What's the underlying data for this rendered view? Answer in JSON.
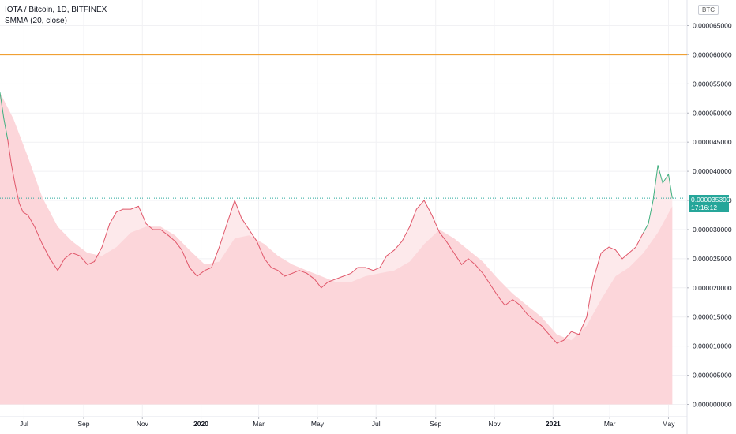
{
  "legend": {
    "title": "IOTA / Bitcoin, 1D, BITFINEX",
    "indicator": "SMMA (20, close)"
  },
  "currency_badge": "BTC",
  "last_price_tag": {
    "price": "0.000035390",
    "countdown": "17:16:12"
  },
  "colors": {
    "price_line": "#e0576a",
    "price_line_up": "#3fb07f",
    "area_under": "#fcd6da",
    "area_between": "#fde9eb",
    "horizontal_line": "#f0a033",
    "grid": "#f1f1f4",
    "axis_text": "#131722",
    "tag_bg": "#26a69a"
  },
  "chart_data": {
    "type": "line",
    "title": "IOTA / Bitcoin, 1D, BITFINEX",
    "xlabel": "",
    "ylabel": "",
    "ylim": [
      0,
      6.65e-05
    ],
    "y_ticks": [
      "0.000000000",
      "0.000005000",
      "0.000010000",
      "0.000015000",
      "0.000020000",
      "0.000025000",
      "0.000030000",
      "0.000035000",
      "0.000040000",
      "0.000045000",
      "0.000050000",
      "0.000055000",
      "0.000060000",
      "0.000065000"
    ],
    "x_ticks": [
      "Jul",
      "Sep",
      "Nov",
      "2020",
      "Mar",
      "May",
      "Jul",
      "Sep",
      "Nov",
      "2021",
      "Mar",
      "May"
    ],
    "x_range": [
      "2019-06-06",
      "2021-05-08"
    ],
    "horizontal_line": 6e-05,
    "grid": true,
    "legend": "top-left",
    "series": [
      {
        "name": "IOTA / Bitcoin",
        "x": [
          "2019-06-06",
          "2019-06-10",
          "2019-06-14",
          "2019-06-18",
          "2019-06-22",
          "2019-06-26",
          "2019-06-30",
          "2019-07-05",
          "2019-07-12",
          "2019-07-20",
          "2019-07-28",
          "2019-08-05",
          "2019-08-12",
          "2019-08-20",
          "2019-08-28",
          "2019-09-05",
          "2019-09-12",
          "2019-09-20",
          "2019-09-28",
          "2019-10-05",
          "2019-10-12",
          "2019-10-20",
          "2019-10-28",
          "2019-11-05",
          "2019-11-12",
          "2019-11-20",
          "2019-11-28",
          "2019-12-05",
          "2019-12-12",
          "2019-12-20",
          "2019-12-28",
          "2020-01-05",
          "2020-01-12",
          "2020-01-20",
          "2020-01-28",
          "2020-02-05",
          "2020-02-12",
          "2020-02-20",
          "2020-02-28",
          "2020-03-07",
          "2020-03-14",
          "2020-03-21",
          "2020-03-28",
          "2020-04-05",
          "2020-04-12",
          "2020-04-20",
          "2020-04-28",
          "2020-05-05",
          "2020-05-12",
          "2020-05-20",
          "2020-05-28",
          "2020-06-05",
          "2020-06-12",
          "2020-06-20",
          "2020-06-28",
          "2020-07-05",
          "2020-07-12",
          "2020-07-20",
          "2020-07-28",
          "2020-08-05",
          "2020-08-12",
          "2020-08-20",
          "2020-08-28",
          "2020-09-05",
          "2020-09-12",
          "2020-09-20",
          "2020-09-28",
          "2020-10-05",
          "2020-10-12",
          "2020-10-20",
          "2020-10-28",
          "2020-11-05",
          "2020-11-12",
          "2020-11-20",
          "2020-11-28",
          "2020-12-05",
          "2020-12-12",
          "2020-12-20",
          "2020-12-28",
          "2021-01-05",
          "2021-01-12",
          "2021-01-20",
          "2021-01-28",
          "2021-02-05",
          "2021-02-12",
          "2021-02-20",
          "2021-02-28",
          "2021-03-07",
          "2021-03-14",
          "2021-03-21",
          "2021-03-28",
          "2021-04-05",
          "2021-04-10",
          "2021-04-15",
          "2021-04-20",
          "2021-04-25",
          "2021-05-01",
          "2021-05-05"
        ],
        "values": [
          5.35e-05,
          4.9e-05,
          4.55e-05,
          4.1e-05,
          3.75e-05,
          3.45e-05,
          3.3e-05,
          3.25e-05,
          3.05e-05,
          2.75e-05,
          2.5e-05,
          2.3e-05,
          2.5e-05,
          2.6e-05,
          2.55e-05,
          2.4e-05,
          2.45e-05,
          2.7e-05,
          3.1e-05,
          3.3e-05,
          3.35e-05,
          3.35e-05,
          3.4e-05,
          3.1e-05,
          3e-05,
          3e-05,
          2.9e-05,
          2.8e-05,
          2.65e-05,
          2.35e-05,
          2.2e-05,
          2.3e-05,
          2.35e-05,
          2.7e-05,
          3.1e-05,
          3.5e-05,
          3.2e-05,
          3e-05,
          2.8e-05,
          2.5e-05,
          2.35e-05,
          2.3e-05,
          2.2e-05,
          2.25e-05,
          2.3e-05,
          2.25e-05,
          2.15e-05,
          2e-05,
          2.1e-05,
          2.15e-05,
          2.2e-05,
          2.25e-05,
          2.35e-05,
          2.35e-05,
          2.3e-05,
          2.35e-05,
          2.55e-05,
          2.65e-05,
          2.8e-05,
          3.05e-05,
          3.35e-05,
          3.5e-05,
          3.25e-05,
          2.95e-05,
          2.8e-05,
          2.6e-05,
          2.4e-05,
          2.5e-05,
          2.4e-05,
          2.25e-05,
          2.05e-05,
          1.85e-05,
          1.7e-05,
          1.8e-05,
          1.7e-05,
          1.55e-05,
          1.45e-05,
          1.35e-05,
          1.2e-05,
          1.05e-05,
          1.1e-05,
          1.25e-05,
          1.2e-05,
          1.5e-05,
          2.15e-05,
          2.6e-05,
          2.7e-05,
          2.65e-05,
          2.5e-05,
          2.6e-05,
          2.7e-05,
          2.95e-05,
          3.1e-05,
          3.5e-05,
          4.1e-05,
          3.8e-05,
          3.95e-05,
          3.54e-05
        ]
      },
      {
        "name": "SMMA (20, close)",
        "x": [
          "2019-06-06",
          "2019-06-20",
          "2019-07-05",
          "2019-07-20",
          "2019-08-05",
          "2019-08-20",
          "2019-09-05",
          "2019-09-20",
          "2019-10-05",
          "2019-10-20",
          "2019-11-05",
          "2019-11-20",
          "2019-12-05",
          "2019-12-20",
          "2020-01-05",
          "2020-01-20",
          "2020-02-05",
          "2020-02-20",
          "2020-03-07",
          "2020-03-21",
          "2020-04-05",
          "2020-04-20",
          "2020-05-05",
          "2020-05-20",
          "2020-06-05",
          "2020-06-20",
          "2020-07-05",
          "2020-07-20",
          "2020-08-05",
          "2020-08-20",
          "2020-09-05",
          "2020-09-20",
          "2020-10-05",
          "2020-10-20",
          "2020-11-05",
          "2020-11-20",
          "2020-12-05",
          "2020-12-20",
          "2021-01-05",
          "2021-01-20",
          "2021-02-05",
          "2021-02-20",
          "2021-03-07",
          "2021-03-21",
          "2021-04-05",
          "2021-04-20",
          "2021-05-05"
        ],
        "values": [
          5.35e-05,
          4.9e-05,
          4.25e-05,
          3.55e-05,
          3.05e-05,
          2.8e-05,
          2.6e-05,
          2.55e-05,
          2.7e-05,
          2.95e-05,
          3.05e-05,
          3.05e-05,
          2.9e-05,
          2.65e-05,
          2.4e-05,
          2.45e-05,
          2.85e-05,
          2.9e-05,
          2.75e-05,
          2.55e-05,
          2.4e-05,
          2.3e-05,
          2.2e-05,
          2.1e-05,
          2.1e-05,
          2.2e-05,
          2.25e-05,
          2.3e-05,
          2.45e-05,
          2.75e-05,
          3e-05,
          2.85e-05,
          2.65e-05,
          2.45e-05,
          2.15e-05,
          1.9e-05,
          1.7e-05,
          1.5e-05,
          1.2e-05,
          1.1e-05,
          1.35e-05,
          1.8e-05,
          2.2e-05,
          2.35e-05,
          2.6e-05,
          2.95e-05,
          3.4e-05
        ]
      }
    ]
  }
}
